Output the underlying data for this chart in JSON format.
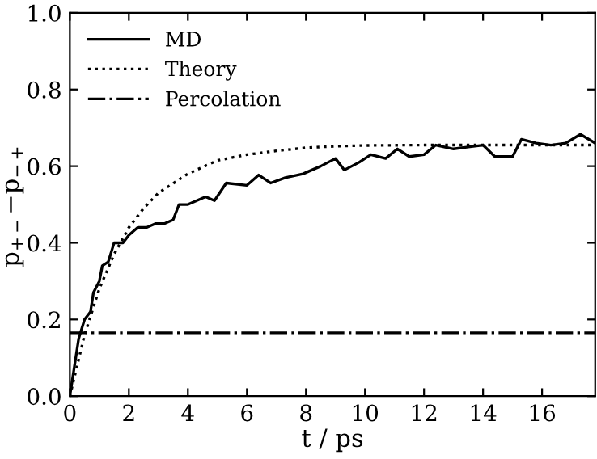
{
  "chart_data": {
    "type": "line",
    "xlabel": "t / ps",
    "ylabel": "p$_{+−}$−p$_{−+}$",
    "xlim": [
      0,
      17.8
    ],
    "xticks": [
      0,
      2,
      4,
      6,
      8,
      10,
      12,
      14,
      16
    ],
    "ylim": [
      0,
      1
    ],
    "yticks": [
      {
        "value": 0,
        "label": "0.0"
      },
      0.2,
      0.4,
      0.6,
      0.8,
      {
        "value": 1,
        "label": "1.0"
      }
    ],
    "legend": "top left",
    "grid": false,
    "series": [
      {
        "name": "MD",
        "color": "#000000",
        "line_style": "solid",
        "x": [
          0,
          0.3,
          0.5,
          0.7,
          0.8,
          1.0,
          1.1,
          1.3,
          1.5,
          1.8,
          2.0,
          2.3,
          2.6,
          2.9,
          3.2,
          3.5,
          3.7,
          4.0,
          4.6,
          4.9,
          5.3,
          6.0,
          6.4,
          6.8,
          7.3,
          7.9,
          8.5,
          9.0,
          9.3,
          9.8,
          10.2,
          10.7,
          11.1,
          11.5,
          12.0,
          12.4,
          13.0,
          13.5,
          14.0,
          14.4,
          15.0,
          15.3,
          15.8,
          16.3,
          16.8,
          17.3,
          17.8
        ],
        "values": [
          0,
          0.15,
          0.2,
          0.22,
          0.27,
          0.3,
          0.34,
          0.35,
          0.4,
          0.4,
          0.42,
          0.44,
          0.44,
          0.45,
          0.45,
          0.46,
          0.5,
          0.5,
          0.52,
          0.51,
          0.556,
          0.55,
          0.577,
          0.556,
          0.57,
          0.58,
          0.6,
          0.62,
          0.59,
          0.61,
          0.63,
          0.62,
          0.645,
          0.625,
          0.63,
          0.655,
          0.645,
          0.65,
          0.655,
          0.625,
          0.625,
          0.67,
          0.66,
          0.655,
          0.66,
          0.683,
          0.66
        ]
      },
      {
        "name": "Theory",
        "color": "#000000",
        "line_style": "dotted",
        "x": [
          0,
          0.5,
          1,
          1.5,
          2,
          2.5,
          3,
          4,
          5,
          6,
          7,
          8,
          9,
          10,
          12,
          14,
          16,
          17.8
        ],
        "values": [
          0,
          0.16,
          0.28,
          0.37,
          0.44,
          0.49,
          0.53,
          0.58,
          0.615,
          0.63,
          0.64,
          0.648,
          0.652,
          0.654,
          0.655,
          0.655,
          0.655,
          0.655
        ]
      },
      {
        "name": "Percolation",
        "color": "#000000",
        "line_style": "dashdot",
        "x": [
          0,
          17.8
        ],
        "values": [
          0.165,
          0.165
        ]
      }
    ]
  }
}
